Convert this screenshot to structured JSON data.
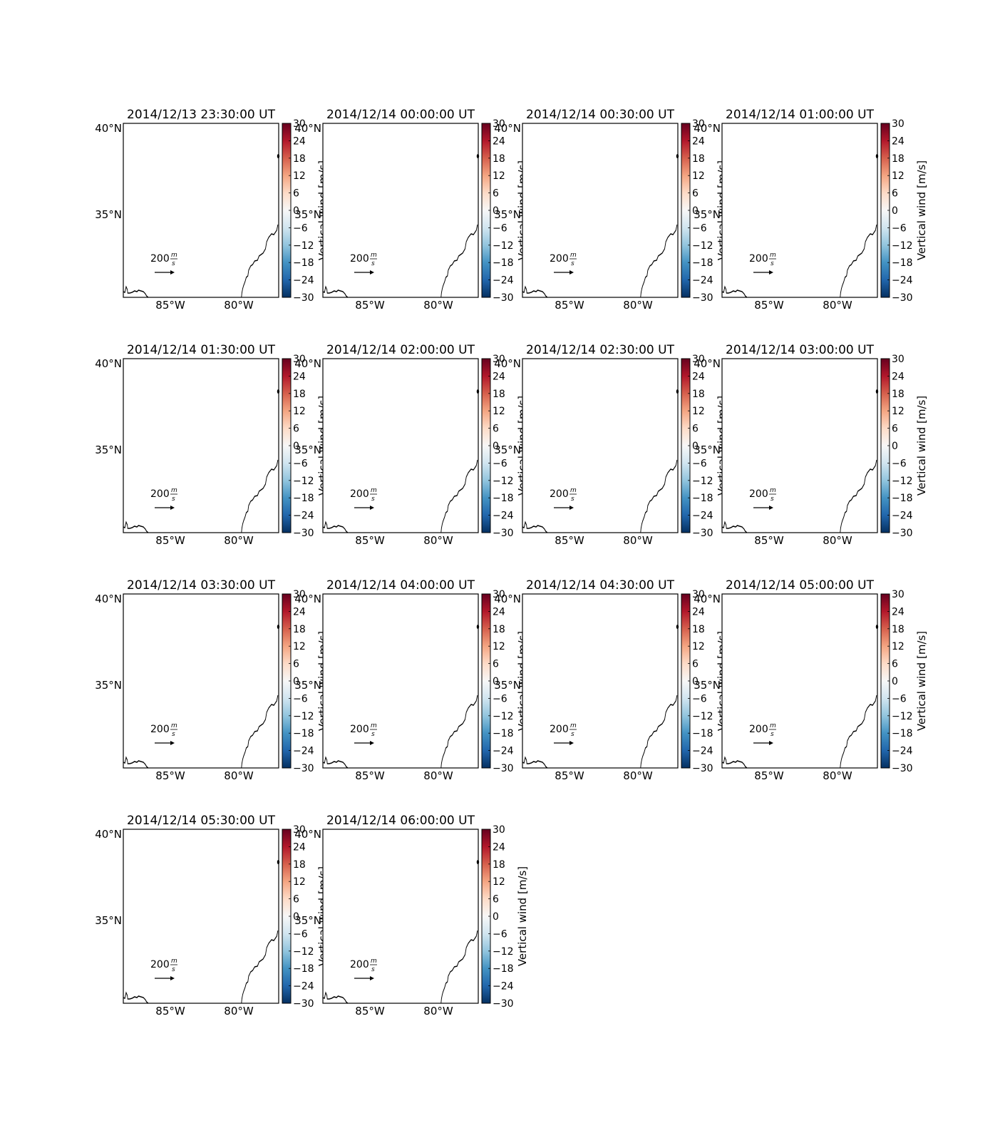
{
  "figure": {
    "colors": {
      "coast": "#000000",
      "frame": "#000000",
      "background": "#ffffff"
    },
    "colormap": [
      "#053061",
      "#2166ac",
      "#4393c3",
      "#92c5de",
      "#d1e5f0",
      "#f7f7f7",
      "#fddbc7",
      "#f4a582",
      "#d6604d",
      "#b2182b",
      "#67001f"
    ],
    "colorbar": {
      "label": "Vertical wind [m/s]",
      "ticks": [
        "30",
        "24",
        "18",
        "12",
        "6",
        "0",
        "−6",
        "−12",
        "−18",
        "−24",
        "−30"
      ],
      "min": -30,
      "max": 30
    },
    "lat_labels": [
      "40°N",
      "35°N"
    ],
    "lon_labels": [
      "85°W",
      "80°W"
    ],
    "reference_vector": {
      "value": "200",
      "unit_num": "m",
      "unit_den": "s"
    },
    "panels": [
      {
        "title": "2014/12/13 23:30:00 UT"
      },
      {
        "title": "2014/12/14 00:00:00 UT"
      },
      {
        "title": "2014/12/14 00:30:00 UT"
      },
      {
        "title": "2014/12/14 01:00:00 UT"
      },
      {
        "title": "2014/12/14 01:30:00 UT"
      },
      {
        "title": "2014/12/14 02:00:00 UT"
      },
      {
        "title": "2014/12/14 02:30:00 UT"
      },
      {
        "title": "2014/12/14 03:00:00 UT"
      },
      {
        "title": "2014/12/14 03:30:00 UT"
      },
      {
        "title": "2014/12/14 04:00:00 UT"
      },
      {
        "title": "2014/12/14 04:30:00 UT"
      },
      {
        "title": "2014/12/14 05:00:00 UT"
      },
      {
        "title": "2014/12/14 05:30:00 UT"
      },
      {
        "title": "2014/12/14 06:00:00 UT"
      }
    ]
  }
}
